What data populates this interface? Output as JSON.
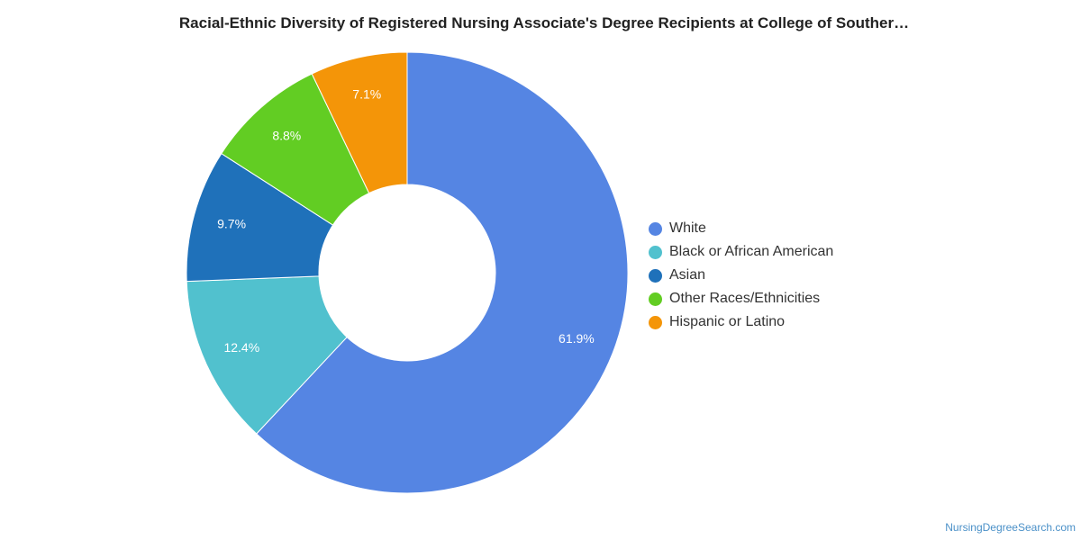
{
  "chart_data": {
    "type": "pie",
    "title": "Racial-Ethnic Diversity of Registered Nursing Associate's Degree Recipients at College of Souther…",
    "categories": [
      "White",
      "Black or African American",
      "Asian",
      "Other Races/Ethnicities",
      "Hispanic or Latino"
    ],
    "values": [
      61.9,
      12.4,
      9.7,
      8.8,
      7.1
    ],
    "labels": [
      "61.9%",
      "12.4%",
      "9.7%",
      "8.8%",
      "7.1%"
    ],
    "colors": [
      "#5585e3",
      "#51c1ce",
      "#1f71ba",
      "#62cd23",
      "#f49508"
    ],
    "legend_position": "right",
    "donut": true
  },
  "credit": "NursingDegreeSearch.com"
}
